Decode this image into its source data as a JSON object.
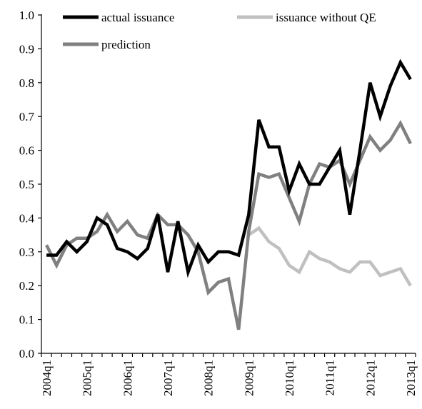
{
  "chart_data": {
    "type": "line",
    "title": "",
    "xlabel": "",
    "ylabel": "",
    "ylim": [
      0,
      1.0
    ],
    "y_ticks": [
      "0.0",
      "0.1",
      "0.2",
      "0.3",
      "0.4",
      "0.5",
      "0.6",
      "0.7",
      "0.8",
      "0.9",
      "1.0"
    ],
    "x_tick_labels": [
      "2004q1",
      "2005q1",
      "2006q1",
      "2007q1",
      "2008q1",
      "2009q1",
      "2010q1",
      "2011q1",
      "2012q1",
      "2013q1"
    ],
    "grid": false,
    "legend_position": "top",
    "categories": [
      "2004q1",
      "2004q2",
      "2004q3",
      "2004q4",
      "2005q1",
      "2005q2",
      "2005q3",
      "2005q4",
      "2006q1",
      "2006q2",
      "2006q3",
      "2006q4",
      "2007q1",
      "2007q2",
      "2007q3",
      "2007q4",
      "2008q1",
      "2008q2",
      "2008q3",
      "2008q4",
      "2009q1",
      "2009q2",
      "2009q3",
      "2009q4",
      "2010q1",
      "2010q2",
      "2010q3",
      "2010q4",
      "2011q1",
      "2011q2",
      "2011q3",
      "2011q4",
      "2012q1",
      "2012q2",
      "2012q3",
      "2012q4",
      "2013q1"
    ],
    "series": [
      {
        "name": "actual issuance",
        "color": "#000000",
        "values": [
          0.29,
          0.29,
          0.33,
          0.3,
          0.33,
          0.4,
          0.38,
          0.31,
          0.3,
          0.28,
          0.31,
          0.41,
          0.24,
          0.39,
          0.24,
          0.32,
          0.27,
          0.3,
          0.3,
          0.29,
          0.41,
          0.69,
          0.61,
          0.61,
          0.48,
          0.56,
          0.5,
          0.5,
          0.55,
          0.6,
          0.41,
          0.6,
          0.8,
          0.7,
          0.79,
          0.86,
          0.81
        ]
      },
      {
        "name": "issuance without QE",
        "color": "#c0c0c0",
        "values": [
          null,
          null,
          null,
          null,
          null,
          null,
          null,
          null,
          null,
          null,
          null,
          null,
          null,
          null,
          null,
          null,
          null,
          null,
          null,
          null,
          0.35,
          0.37,
          0.33,
          0.31,
          0.26,
          0.24,
          0.3,
          0.28,
          0.27,
          0.25,
          0.24,
          0.27,
          0.27,
          0.23,
          0.24,
          0.25,
          0.2
        ]
      },
      {
        "name": "prediction",
        "color": "#808080",
        "values": [
          0.32,
          0.26,
          0.32,
          0.34,
          0.34,
          0.36,
          0.41,
          0.36,
          0.39,
          0.35,
          0.34,
          0.41,
          0.38,
          0.38,
          0.35,
          0.3,
          0.18,
          0.21,
          0.22,
          0.07,
          0.36,
          0.53,
          0.52,
          0.53,
          0.46,
          0.39,
          0.5,
          0.56,
          0.55,
          0.57,
          0.5,
          0.57,
          0.64,
          0.6,
          0.63,
          0.68,
          0.62
        ]
      }
    ]
  }
}
